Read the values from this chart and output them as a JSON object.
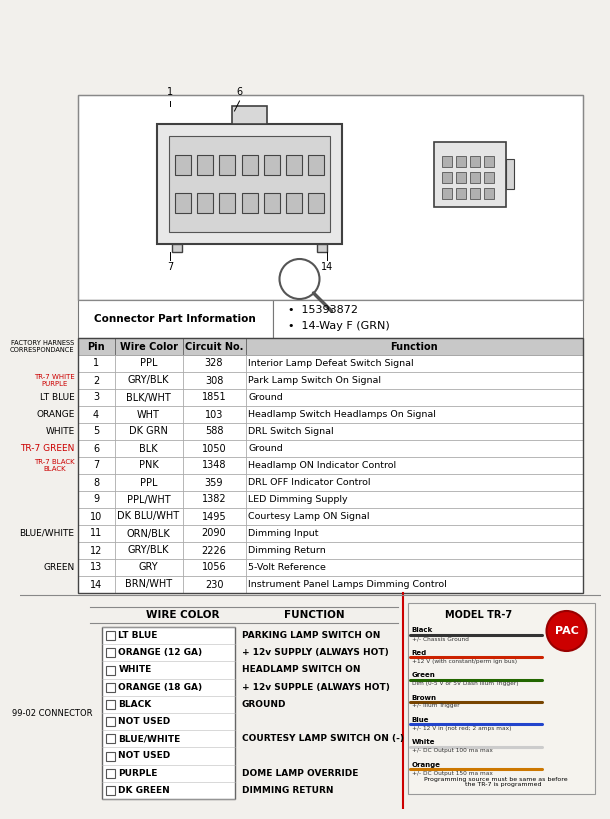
{
  "bg_color": "#f2f0ec",
  "connector_info": [
    "15393872",
    "14-Way F (GRN)"
  ],
  "table_header": [
    "Pin",
    "Wire Color",
    "Circuit No.",
    "Function"
  ],
  "table_rows": [
    [
      "1",
      "PPL",
      "328",
      "Interior Lamp Defeat Switch Signal"
    ],
    [
      "2",
      "GRY/BLK",
      "308",
      "Park Lamp Switch On Signal"
    ],
    [
      "3",
      "BLK/WHT",
      "1851",
      "Ground"
    ],
    [
      "4",
      "WHT",
      "103",
      "Headlamp Switch Headlamps On Signal"
    ],
    [
      "5",
      "DK GRN",
      "588",
      "DRL Switch Signal"
    ],
    [
      "6",
      "BLK",
      "1050",
      "Ground"
    ],
    [
      "7",
      "PNK",
      "1348",
      "Headlamp ON Indicator Control"
    ],
    [
      "8",
      "PPL",
      "359",
      "DRL OFF Indicator Control"
    ],
    [
      "9",
      "PPL/WHT",
      "1382",
      "LED Dimming Supply"
    ],
    [
      "10",
      "DK BLU/WHT",
      "1495",
      "Courtesy Lamp ON Signal"
    ],
    [
      "11",
      "ORN/BLK",
      "2090",
      "Dimming Input"
    ],
    [
      "12",
      "GRY/BLK",
      "2226",
      "Dimming Return"
    ],
    [
      "13",
      "GRY",
      "1056",
      "5-Volt Reference"
    ],
    [
      "14",
      "BRN/WHT",
      "230",
      "Instrument Panel Lamps Dimming Control"
    ]
  ],
  "left_labels": [
    {
      "text": "",
      "color": "#000000",
      "small": false
    },
    {
      "text": "TR-7 WHITE\nPURPLE",
      "color": "#cc0000",
      "small": true
    },
    {
      "text": "LT BLUE",
      "color": "#000000",
      "small": false
    },
    {
      "text": "ORANGE",
      "color": "#000000",
      "small": false
    },
    {
      "text": "WHITE",
      "color": "#000000",
      "small": false
    },
    {
      "text": "TR-7 GREEN",
      "color": "#cc0000",
      "small": false
    },
    {
      "text": "TR-7 BLACK\nBLACK",
      "color": "#cc0000",
      "small": true
    },
    {
      "text": "",
      "color": "#000000",
      "small": false
    },
    {
      "text": "",
      "color": "#000000",
      "small": false
    },
    {
      "text": "",
      "color": "#000000",
      "small": false
    },
    {
      "text": "BLUE/WHITE",
      "color": "#000000",
      "small": false
    },
    {
      "text": "",
      "color": "#000000",
      "small": false
    },
    {
      "text": "GREEN",
      "color": "#000000",
      "small": false
    },
    {
      "text": "",
      "color": "#000000",
      "small": false
    },
    {
      "text": "",
      "color": "#000000",
      "small": false
    }
  ],
  "bottom_wire_colors": [
    "LT BLUE",
    "ORANGE (12 GA)",
    "WHITE",
    "ORANGE (18 GA)",
    "BLACK",
    "NOT USED",
    "BLUE/WHITE",
    "NOT USED",
    "PURPLE",
    "DK GREEN"
  ],
  "bottom_functions": [
    "PARKING LAMP SWITCH ON",
    "+ 12v SUPPLY (ALWAYS HOT)",
    "HEADLAMP SWITCH ON",
    "+ 12v SUPPLE (ALWAYS HOT)",
    "GROUND",
    "",
    "COURTESY LAMP SWITCH ON (-)",
    "",
    "DOME LAMP OVERRIDE",
    "DIMMING RETURN"
  ],
  "bottom_label": "99-02 CONNECTOR",
  "model_text": "MODEL TR-7",
  "pac_lines": [
    {
      "label": "Black",
      "desc": "+/- Chassis Ground"
    },
    {
      "label": "Red",
      "desc": "+12 V (with constant/perm ign bus)"
    },
    {
      "label": "Green",
      "desc": "Dim (0-5 V or 5V Dash Illum Trigger)"
    },
    {
      "label": "Brown",
      "desc": "+/- Illum Trigger"
    },
    {
      "label": "Blue",
      "desc": "+/- 12 V in (not red; 2 amps max)"
    },
    {
      "label": "White",
      "desc": "+/- DC Output 100 ma max"
    },
    {
      "label": "Orange",
      "desc": "+/- DC Output 150 ma max"
    }
  ]
}
